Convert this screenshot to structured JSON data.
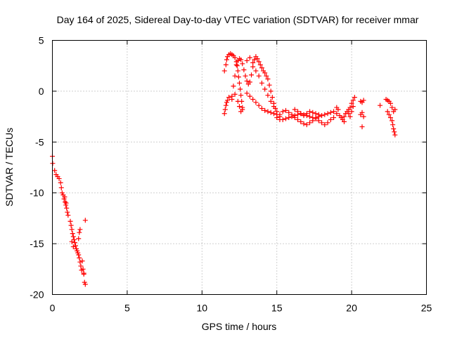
{
  "chart_data": {
    "type": "scatter",
    "title": "Day 164 of 2025, Sidereal Day-to-day VTEC variation (SDTVAR) for receiver mmar",
    "xlabel": "GPS time / hours",
    "ylabel": "SDTVAR / TECUs",
    "xlim": [
      0,
      25
    ],
    "ylim": [
      -20,
      5
    ],
    "xticks": [
      0,
      5,
      10,
      15,
      20,
      25
    ],
    "yticks": [
      -20,
      -15,
      -10,
      -5,
      0,
      5
    ],
    "xtick_labels": [
      "0",
      "5",
      "10",
      "15",
      "20",
      "25"
    ],
    "ytick_labels": [
      "-20",
      "-15",
      "-10",
      "-5",
      "0",
      "5"
    ],
    "grid": true,
    "marker": "+",
    "color": "#ff0000",
    "series": [
      {
        "name": "SDTVAR",
        "points": [
          [
            0.0,
            -6.4
          ],
          [
            0.02,
            -7.1
          ],
          [
            0.15,
            -7.8
          ],
          [
            0.25,
            -8.2
          ],
          [
            0.35,
            -8.4
          ],
          [
            0.45,
            -8.6
          ],
          [
            0.55,
            -9.0
          ],
          [
            0.6,
            -9.5
          ],
          [
            0.65,
            -10.0
          ],
          [
            0.72,
            -10.2
          ],
          [
            0.78,
            -10.6
          ],
          [
            0.85,
            -10.9
          ],
          [
            0.9,
            -11.2
          ],
          [
            0.95,
            -11.5
          ],
          [
            1.0,
            -11.9
          ],
          [
            1.05,
            -12.2
          ],
          [
            0.82,
            -10.4
          ],
          [
            0.92,
            -11.0
          ],
          [
            1.2,
            -12.8
          ],
          [
            1.25,
            -13.2
          ],
          [
            1.3,
            -13.6
          ],
          [
            1.35,
            -14.0
          ],
          [
            1.4,
            -14.3
          ],
          [
            1.45,
            -14.6
          ],
          [
            1.5,
            -14.9
          ],
          [
            1.55,
            -15.2
          ],
          [
            1.3,
            -14.8
          ],
          [
            1.4,
            -15.3
          ],
          [
            1.6,
            -15.5
          ],
          [
            1.65,
            -15.7
          ],
          [
            1.7,
            -15.9
          ],
          [
            1.75,
            -16.1
          ],
          [
            1.8,
            -16.4
          ],
          [
            1.85,
            -16.8
          ],
          [
            1.9,
            -17.2
          ],
          [
            1.95,
            -17.6
          ],
          [
            1.8,
            -13.9
          ],
          [
            1.85,
            -13.6
          ],
          [
            1.75,
            -14.5
          ],
          [
            2.0,
            -16.7
          ],
          [
            2.05,
            -17.5
          ],
          [
            2.1,
            -18.0
          ],
          [
            2.15,
            -18.8
          ],
          [
            2.2,
            -19.0
          ],
          [
            2.2,
            -12.7
          ],
          [
            2.1,
            -17.9
          ],
          [
            11.5,
            -2.2
          ],
          [
            11.55,
            -1.8
          ],
          [
            11.6,
            -1.4
          ],
          [
            11.65,
            -1.1
          ],
          [
            11.7,
            -0.9
          ],
          [
            11.8,
            -0.6
          ],
          [
            11.5,
            2.0
          ],
          [
            11.6,
            2.6
          ],
          [
            11.65,
            3.1
          ],
          [
            11.7,
            3.4
          ],
          [
            11.8,
            3.6
          ],
          [
            11.9,
            3.7
          ],
          [
            12.0,
            3.6
          ],
          [
            12.1,
            3.5
          ],
          [
            12.2,
            3.3
          ],
          [
            12.3,
            2.9
          ],
          [
            12.35,
            2.5
          ],
          [
            12.4,
            2.0
          ],
          [
            12.45,
            1.4
          ],
          [
            12.5,
            0.8
          ],
          [
            12.55,
            0.2
          ],
          [
            12.6,
            -0.4
          ],
          [
            12.65,
            -1.0
          ],
          [
            12.7,
            -1.6
          ],
          [
            12.0,
            -0.5
          ],
          [
            12.1,
            0.5
          ],
          [
            12.2,
            1.5
          ],
          [
            12.3,
            2.6
          ],
          [
            12.4,
            3.0
          ],
          [
            12.5,
            3.2
          ],
          [
            12.6,
            3.1
          ],
          [
            12.7,
            2.7
          ],
          [
            12.8,
            2.1
          ],
          [
            12.9,
            1.5
          ],
          [
            13.0,
            1.0
          ],
          [
            13.1,
            0.7
          ],
          [
            13.2,
            0.9
          ],
          [
            13.3,
            1.6
          ],
          [
            13.4,
            2.4
          ],
          [
            13.5,
            3.1
          ],
          [
            13.6,
            3.4
          ],
          [
            13.7,
            3.2
          ],
          [
            13.8,
            2.9
          ],
          [
            13.9,
            2.6
          ],
          [
            14.0,
            2.3
          ],
          [
            14.1,
            2.0
          ],
          [
            14.2,
            1.8
          ],
          [
            14.3,
            1.5
          ],
          [
            14.4,
            1.2
          ],
          [
            14.5,
            0.6
          ],
          [
            14.6,
            0.0
          ],
          [
            14.7,
            -0.6
          ],
          [
            14.8,
            -1.2
          ],
          [
            14.9,
            -1.7
          ],
          [
            13.0,
            3.0
          ],
          [
            13.2,
            3.3
          ],
          [
            13.4,
            2.8
          ],
          [
            13.6,
            2.0
          ],
          [
            13.8,
            1.5
          ],
          [
            14.0,
            0.8
          ],
          [
            14.2,
            0.2
          ],
          [
            14.4,
            -0.4
          ],
          [
            14.6,
            -1.0
          ],
          [
            14.8,
            -1.5
          ],
          [
            15.0,
            -2.0
          ],
          [
            15.2,
            -2.3
          ],
          [
            13.0,
            -0.2
          ],
          [
            13.2,
            -0.5
          ],
          [
            13.4,
            -0.8
          ],
          [
            13.6,
            -1.1
          ],
          [
            13.8,
            -1.4
          ],
          [
            14.0,
            -1.7
          ],
          [
            14.2,
            -1.9
          ],
          [
            14.4,
            -2.0
          ],
          [
            14.6,
            -2.1
          ],
          [
            14.8,
            -2.2
          ],
          [
            15.0,
            -2.3
          ],
          [
            15.2,
            -2.5
          ],
          [
            12.0,
            -0.8
          ],
          [
            12.2,
            -0.3
          ],
          [
            12.4,
            -1.0
          ],
          [
            12.6,
            -2.0
          ],
          [
            12.7,
            -1.8
          ],
          [
            12.5,
            -1.5
          ],
          [
            15.0,
            -2.6
          ],
          [
            15.2,
            -2.8
          ],
          [
            15.4,
            -2.8
          ],
          [
            15.6,
            -2.7
          ],
          [
            15.8,
            -2.6
          ],
          [
            16.0,
            -2.5
          ],
          [
            16.2,
            -2.4
          ],
          [
            16.4,
            -2.3
          ],
          [
            16.6,
            -2.2
          ],
          [
            16.8,
            -2.3
          ],
          [
            17.0,
            -2.4
          ],
          [
            17.2,
            -2.5
          ],
          [
            17.4,
            -2.6
          ],
          [
            17.6,
            -2.6
          ],
          [
            17.8,
            -2.5
          ],
          [
            18.0,
            -2.4
          ],
          [
            18.2,
            -2.3
          ],
          [
            18.4,
            -2.2
          ],
          [
            15.4,
            -2.0
          ],
          [
            15.6,
            -1.9
          ],
          [
            15.8,
            -2.1
          ],
          [
            16.0,
            -2.3
          ],
          [
            16.2,
            -2.6
          ],
          [
            16.4,
            -2.8
          ],
          [
            16.6,
            -3.0
          ],
          [
            16.8,
            -3.2
          ],
          [
            17.0,
            -3.3
          ],
          [
            17.2,
            -3.1
          ],
          [
            17.4,
            -2.9
          ],
          [
            17.6,
            -2.7
          ],
          [
            17.8,
            -2.9
          ],
          [
            18.0,
            -3.1
          ],
          [
            18.2,
            -3.3
          ],
          [
            18.4,
            -3.1
          ],
          [
            18.6,
            -2.8
          ],
          [
            18.8,
            -2.6
          ],
          [
            16.2,
            -1.8
          ],
          [
            16.4,
            -2.0
          ],
          [
            16.6,
            -2.2
          ],
          [
            16.8,
            -2.4
          ],
          [
            17.0,
            -2.2
          ],
          [
            17.2,
            -2.0
          ],
          [
            17.4,
            -2.1
          ],
          [
            17.6,
            -2.2
          ],
          [
            17.8,
            -2.3
          ],
          [
            18.6,
            -2.1
          ],
          [
            18.8,
            -2.0
          ],
          [
            19.0,
            -2.2
          ],
          [
            19.0,
            -1.6
          ],
          [
            19.1,
            -1.8
          ],
          [
            19.2,
            -2.4
          ],
          [
            19.3,
            -2.6
          ],
          [
            19.4,
            -2.8
          ],
          [
            19.5,
            -2.5
          ],
          [
            19.6,
            -2.2
          ],
          [
            19.7,
            -2.0
          ],
          [
            19.8,
            -1.8
          ],
          [
            19.9,
            -1.6
          ],
          [
            20.0,
            -1.2
          ],
          [
            20.1,
            -0.9
          ],
          [
            20.2,
            -0.6
          ],
          [
            19.8,
            -2.2
          ],
          [
            19.9,
            -2.5
          ],
          [
            20.0,
            -2.0
          ],
          [
            20.1,
            -1.5
          ],
          [
            19.5,
            -3.0
          ],
          [
            20.6,
            -1.0
          ],
          [
            20.7,
            -1.1
          ],
          [
            20.8,
            -0.9
          ],
          [
            20.6,
            -2.3
          ],
          [
            20.7,
            -2.1
          ],
          [
            20.8,
            -2.5
          ],
          [
            20.7,
            -3.5
          ],
          [
            21.9,
            -1.4
          ],
          [
            22.3,
            -0.8
          ],
          [
            22.4,
            -0.9
          ],
          [
            22.5,
            -1.0
          ],
          [
            22.6,
            -1.2
          ],
          [
            22.4,
            -2.0
          ],
          [
            22.5,
            -2.3
          ],
          [
            22.6,
            -2.6
          ],
          [
            22.7,
            -2.9
          ],
          [
            22.75,
            -3.3
          ],
          [
            22.8,
            -3.7
          ],
          [
            22.85,
            -4.0
          ],
          [
            22.9,
            -4.3
          ],
          [
            22.8,
            -2.0
          ],
          [
            22.9,
            -1.8
          ],
          [
            22.7,
            -1.6
          ]
        ]
      }
    ]
  }
}
